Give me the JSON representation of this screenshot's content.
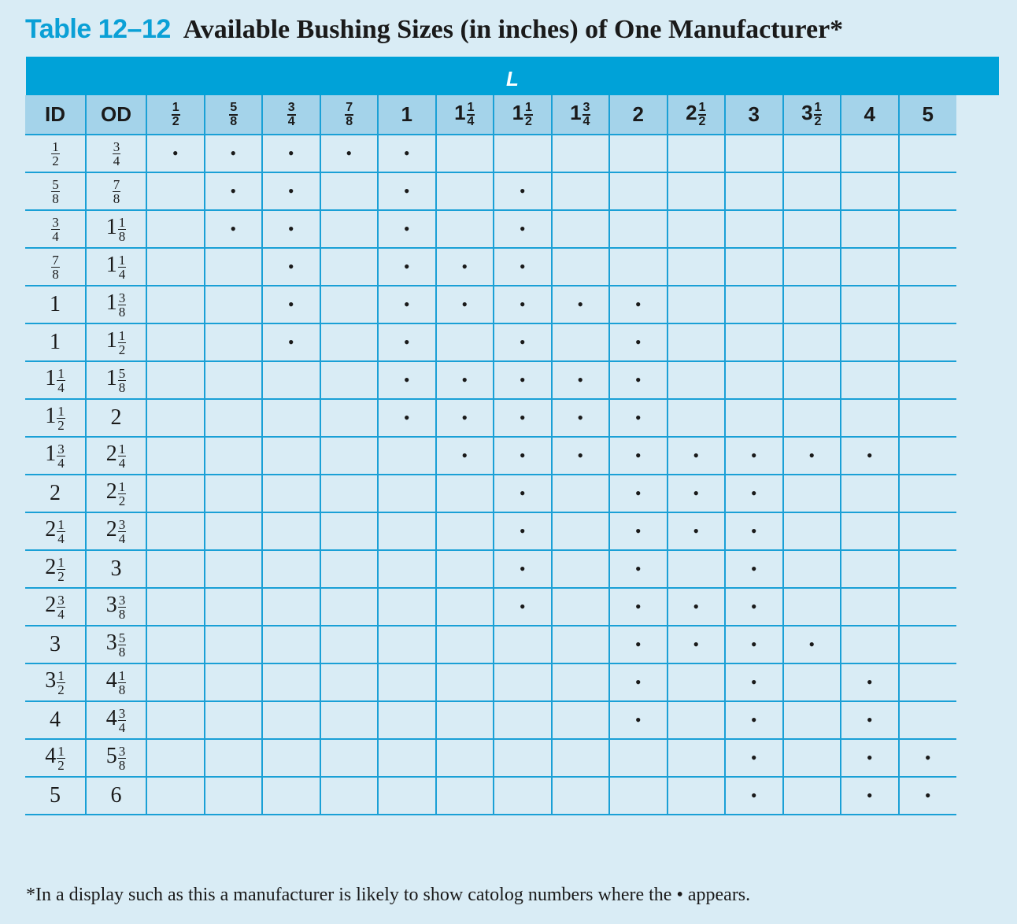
{
  "title": {
    "label": "Table 12–12",
    "caption": "Available Bushing Sizes (in inches) of One Manufacturer*"
  },
  "group_header": "L",
  "headers": {
    "id": "ID",
    "od": "OD",
    "lengths": [
      "1/2",
      "5/8",
      "3/4",
      "7/8",
      "1",
      "1 1/4",
      "1 1/2",
      "1 3/4",
      "2",
      "2 1/2",
      "3",
      "3 1/2",
      "4",
      "5"
    ]
  },
  "mark": "•",
  "rows": [
    {
      "id": "1/2",
      "od": "3/4",
      "marks": [
        1,
        1,
        1,
        1,
        1,
        0,
        0,
        0,
        0,
        0,
        0,
        0,
        0,
        0
      ]
    },
    {
      "id": "5/8",
      "od": "7/8",
      "marks": [
        0,
        1,
        1,
        0,
        1,
        0,
        1,
        0,
        0,
        0,
        0,
        0,
        0,
        0
      ]
    },
    {
      "id": "3/4",
      "od": "1 1/8",
      "marks": [
        0,
        1,
        1,
        0,
        1,
        0,
        1,
        0,
        0,
        0,
        0,
        0,
        0,
        0
      ]
    },
    {
      "id": "7/8",
      "od": "1 1/4",
      "marks": [
        0,
        0,
        1,
        0,
        1,
        1,
        1,
        0,
        0,
        0,
        0,
        0,
        0,
        0
      ]
    },
    {
      "id": "1",
      "od": "1 3/8",
      "marks": [
        0,
        0,
        1,
        0,
        1,
        1,
        1,
        1,
        1,
        0,
        0,
        0,
        0,
        0
      ]
    },
    {
      "id": "1",
      "od": "1 1/2",
      "marks": [
        0,
        0,
        1,
        0,
        1,
        0,
        1,
        0,
        1,
        0,
        0,
        0,
        0,
        0
      ]
    },
    {
      "id": "1 1/4",
      "od": "1 5/8",
      "marks": [
        0,
        0,
        0,
        0,
        1,
        1,
        1,
        1,
        1,
        0,
        0,
        0,
        0,
        0
      ]
    },
    {
      "id": "1 1/2",
      "od": "2",
      "marks": [
        0,
        0,
        0,
        0,
        1,
        1,
        1,
        1,
        1,
        0,
        0,
        0,
        0,
        0
      ]
    },
    {
      "id": "1 3/4",
      "od": "2 1/4",
      "marks": [
        0,
        0,
        0,
        0,
        0,
        1,
        1,
        1,
        1,
        1,
        1,
        1,
        1,
        0
      ]
    },
    {
      "id": "2",
      "od": "2 1/2",
      "marks": [
        0,
        0,
        0,
        0,
        0,
        0,
        1,
        0,
        1,
        1,
        1,
        0,
        0,
        0
      ]
    },
    {
      "id": "2 1/4",
      "od": "2 3/4",
      "marks": [
        0,
        0,
        0,
        0,
        0,
        0,
        1,
        0,
        1,
        1,
        1,
        0,
        0,
        0
      ]
    },
    {
      "id": "2 1/2",
      "od": "3",
      "marks": [
        0,
        0,
        0,
        0,
        0,
        0,
        1,
        0,
        1,
        0,
        1,
        0,
        0,
        0
      ]
    },
    {
      "id": "2 3/4",
      "od": "3 3/8",
      "marks": [
        0,
        0,
        0,
        0,
        0,
        0,
        1,
        0,
        1,
        1,
        1,
        0,
        0,
        0
      ]
    },
    {
      "id": "3",
      "od": "3 5/8",
      "marks": [
        0,
        0,
        0,
        0,
        0,
        0,
        0,
        0,
        1,
        1,
        1,
        1,
        0,
        0
      ]
    },
    {
      "id": "3 1/2",
      "od": "4 1/8",
      "marks": [
        0,
        0,
        0,
        0,
        0,
        0,
        0,
        0,
        1,
        0,
        1,
        0,
        1,
        0
      ]
    },
    {
      "id": "4",
      "od": "4 3/4",
      "marks": [
        0,
        0,
        0,
        0,
        0,
        0,
        0,
        0,
        1,
        0,
        1,
        0,
        1,
        0
      ]
    },
    {
      "id": "4 1/2",
      "od": "5 3/8",
      "marks": [
        0,
        0,
        0,
        0,
        0,
        0,
        0,
        0,
        0,
        0,
        1,
        0,
        1,
        1
      ]
    },
    {
      "id": "5",
      "od": "6",
      "marks": [
        0,
        0,
        0,
        0,
        0,
        0,
        0,
        0,
        0,
        0,
        1,
        0,
        1,
        1
      ]
    }
  ],
  "footnote": "*In a display such as this a manufacturer is likely to show catolog numbers where the • appears."
}
